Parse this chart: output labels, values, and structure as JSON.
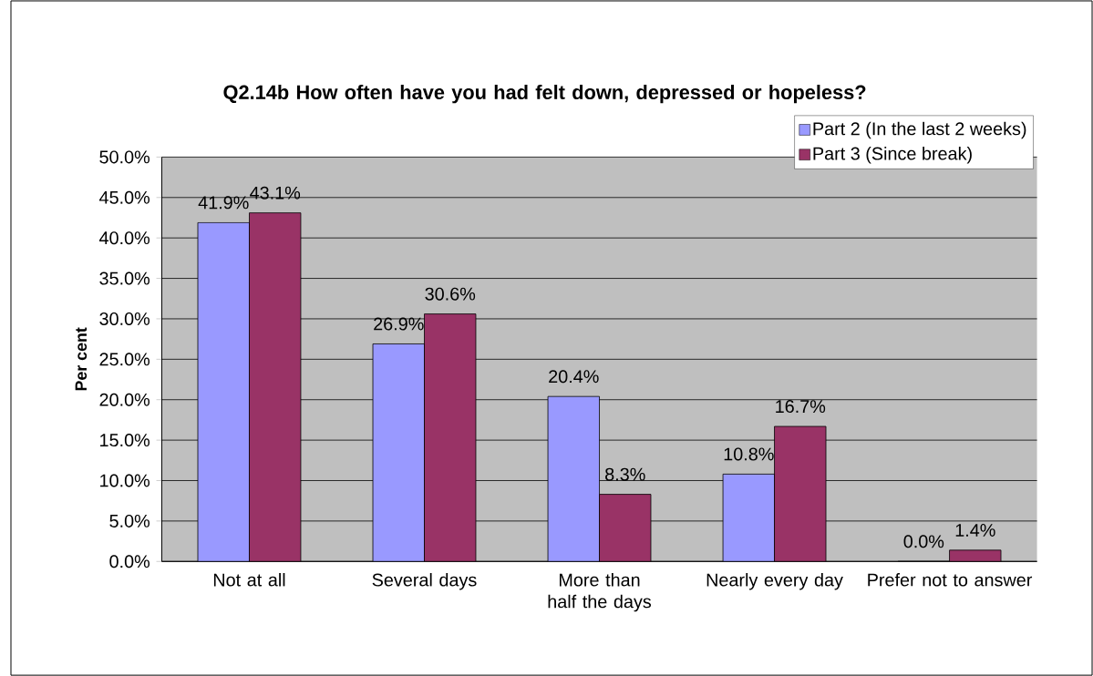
{
  "chart_data": {
    "type": "bar",
    "title": "Q2.14b How often have you had felt down, depressed or hopeless?",
    "ylabel": "Per cent",
    "categories": [
      "Not at all",
      "Several days",
      "More than half the days",
      "Nearly every day",
      "Prefer not to answer"
    ],
    "series": [
      {
        "name": "Part 2 (In the last 2 weeks)",
        "color": "#9999ff",
        "values": [
          41.9,
          26.9,
          20.4,
          10.8,
          0.0
        ],
        "value_labels": [
          "41.9%",
          "26.9%",
          "20.4%",
          "10.8%",
          "0.0%"
        ]
      },
      {
        "name": "Part 3 (Since break)",
        "color": "#993366",
        "values": [
          43.1,
          30.6,
          8.3,
          16.7,
          1.4
        ],
        "value_labels": [
          "43.1%",
          "30.6%",
          "8.3%",
          "16.7%",
          "1.4%"
        ]
      }
    ],
    "ylim": [
      0,
      50
    ],
    "yticks": [
      {
        "value": 0,
        "label": "0.0%"
      },
      {
        "value": 5,
        "label": "5.0%"
      },
      {
        "value": 10,
        "label": "10.0%"
      },
      {
        "value": 15,
        "label": "15.0%"
      },
      {
        "value": 20,
        "label": "20.0%"
      },
      {
        "value": 25,
        "label": "25.0%"
      },
      {
        "value": 30,
        "label": "30.0%"
      },
      {
        "value": 35,
        "label": "35.0%"
      },
      {
        "value": 40,
        "label": "40.0%"
      },
      {
        "value": 45,
        "label": "45.0%"
      },
      {
        "value": 50,
        "label": "50.0%"
      }
    ],
    "grid": "y",
    "legend": "top right"
  }
}
